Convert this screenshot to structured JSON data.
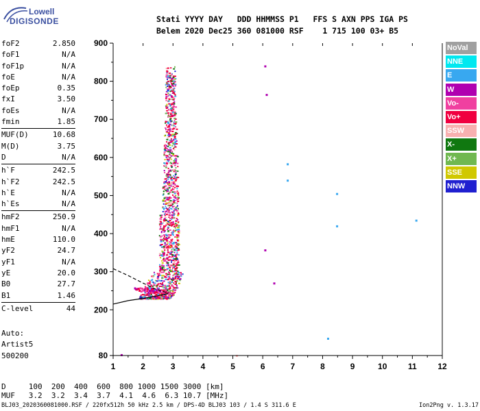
{
  "logo": {
    "top": "Lowell",
    "bottom": "DIGISONDE"
  },
  "header": {
    "line1": "Stati YYYY DAY   DDD HHMMSS P1   FFS S AXN PPS IGA PS",
    "line2": "Belem 2020 Dec25 360 081000 RSF    1 715 100 03+ B5"
  },
  "params": {
    "group1": [
      {
        "name": "foF2",
        "value": "2.850"
      },
      {
        "name": "foF1",
        "value": "N/A"
      },
      {
        "name": "foF1p",
        "value": "N/A"
      },
      {
        "name": "foE",
        "value": "N/A"
      },
      {
        "name": "foEp",
        "value": "0.35"
      },
      {
        "name": "fxI",
        "value": "3.50"
      },
      {
        "name": "foEs",
        "value": "N/A"
      },
      {
        "name": "fmin",
        "value": "1.85"
      }
    ],
    "group2": [
      {
        "name": "MUF(D)",
        "value": "10.68"
      },
      {
        "name": "M(D)",
        "value": "3.75"
      },
      {
        "name": "D",
        "value": "N/A"
      }
    ],
    "group3": [
      {
        "name": "h`F",
        "value": "242.5"
      },
      {
        "name": "h`F2",
        "value": "242.5"
      },
      {
        "name": "h`E",
        "value": "N/A"
      },
      {
        "name": "h`Es",
        "value": "N/A"
      }
    ],
    "group4": [
      {
        "name": "hmF2",
        "value": "250.9"
      },
      {
        "name": "hmF1",
        "value": "N/A"
      },
      {
        "name": "hmE",
        "value": "110.0"
      },
      {
        "name": "yF2",
        "value": "24.7"
      },
      {
        "name": "yF1",
        "value": "N/A"
      },
      {
        "name": "yE",
        "value": "20.0"
      },
      {
        "name": "B0",
        "value": "27.7"
      },
      {
        "name": "B1",
        "value": "1.46"
      }
    ],
    "group5": [
      {
        "name": "C-level",
        "value": "44"
      }
    ]
  },
  "auto": {
    "line1": "Auto:",
    "line2": "Artist5",
    "line3": "500200"
  },
  "legend": [
    {
      "label": "NoVal",
      "color": "#a0a0a0"
    },
    {
      "label": "NNE",
      "color": "#00e8f0"
    },
    {
      "label": "E",
      "color": "#38a8f0"
    },
    {
      "label": "W",
      "color": "#b000b0"
    },
    {
      "label": "Vo-",
      "color": "#f040a0"
    },
    {
      "label": "Vo+",
      "color": "#f00040"
    },
    {
      "label": "SSW",
      "color": "#f8b0b0"
    },
    {
      "label": "X-",
      "color": "#107810"
    },
    {
      "label": "X+",
      "color": "#70b850"
    },
    {
      "label": "SSE",
      "color": "#d0c800"
    },
    {
      "label": "NNW",
      "color": "#2020d0"
    }
  ],
  "dm_table": {
    "row1": "D     100  200  400  600  800 1000 1500 3000 [km]",
    "row2": "MUF   3.2  3.2  3.4  3.7  4.1  4.6  6.3 10.7 [MHz]"
  },
  "footer": {
    "left": "BLJ03_2020360081000.RSF / 220fx512h 50 kHz 2.5 km / DPS-4D BLJ03 103 / 1.4 S 311.6 E",
    "right": "Ion2Png v. 1.3.17"
  },
  "chart_data": {
    "type": "scatter",
    "title": "",
    "xlabel": "",
    "ylabel": "",
    "xlim": [
      1,
      12
    ],
    "ylim": [
      80,
      900
    ],
    "x_ticks": [
      1,
      2,
      3,
      4,
      5,
      6,
      7,
      8,
      9,
      10,
      11,
      12
    ],
    "y_ticks": [
      80,
      200,
      300,
      400,
      500,
      600,
      700,
      800,
      900
    ],
    "grid": false,
    "legend_position": "right",
    "echo_cluster": {
      "description_colors": [
        "#f00040",
        "#f040a0",
        "#b000b0",
        "#38a8f0",
        "#107810",
        "#70b850",
        "#d0c800",
        "#2020d0",
        "#f8b0b0"
      ],
      "freq_range": [
        1.6,
        3.6
      ],
      "height_range": [
        230,
        840
      ]
    },
    "isolated_points": [
      {
        "x": 1.25,
        "y": 82,
        "dir": "W"
      },
      {
        "x": 5.1,
        "y": 80,
        "dir": "SSW"
      },
      {
        "x": 6.05,
        "y": 840,
        "dir": "W"
      },
      {
        "x": 6.1,
        "y": 765,
        "dir": "W"
      },
      {
        "x": 6.05,
        "y": 357,
        "dir": "W"
      },
      {
        "x": 6.35,
        "y": 270,
        "dir": "W"
      },
      {
        "x": 6.8,
        "y": 583,
        "dir": "E"
      },
      {
        "x": 6.8,
        "y": 540,
        "dir": "E"
      },
      {
        "x": 8.45,
        "y": 505,
        "dir": "E"
      },
      {
        "x": 8.45,
        "y": 420,
        "dir": "E"
      },
      {
        "x": 8.15,
        "y": 125,
        "dir": "E"
      },
      {
        "x": 11.1,
        "y": 435,
        "dir": "E"
      }
    ],
    "profile_solid": [
      [
        1.0,
        215
      ],
      [
        1.5,
        224
      ],
      [
        2.0,
        230
      ],
      [
        2.5,
        237
      ],
      [
        2.8,
        242
      ],
      [
        2.85,
        245
      ]
    ],
    "profile_dashed": [
      [
        1.0,
        308
      ],
      [
        1.5,
        290
      ],
      [
        2.0,
        270
      ],
      [
        2.4,
        255
      ],
      [
        2.7,
        247
      ],
      [
        2.85,
        245
      ]
    ]
  }
}
